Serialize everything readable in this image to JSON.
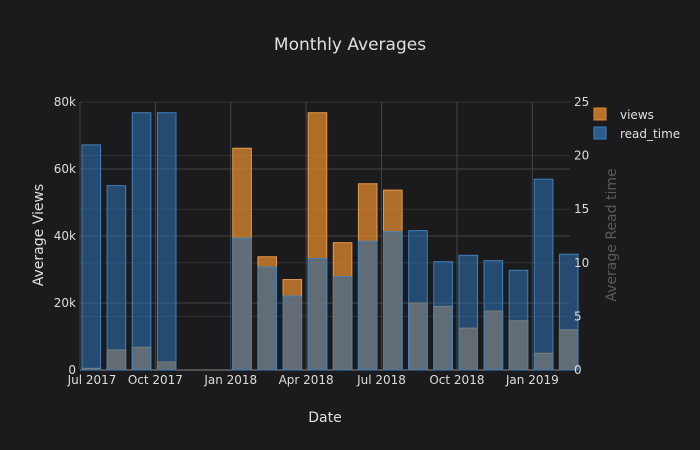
{
  "chart_data": {
    "type": "bar",
    "title": "Monthly Averages",
    "xlabel": "Date",
    "ylabel_left": "Average Views",
    "ylabel_right": "Average Read time",
    "x_ticks": [
      "Jul 2017",
      "Oct 2017",
      "Jan 2018",
      "Apr 2018",
      "Jul 2018",
      "Oct 2018",
      "Jan 2019"
    ],
    "y_left_ticks": [
      "0",
      "20k",
      "40k",
      "60k",
      "80k"
    ],
    "y_right_ticks": [
      "0",
      "5",
      "10",
      "15",
      "20",
      "25"
    ],
    "ylim_left": [
      0,
      80000
    ],
    "ylim_right": [
      0,
      25
    ],
    "grid": true,
    "legend_position": "top-right",
    "months": [
      "2017-07",
      "2017-08",
      "2017-09",
      "2017-10",
      "2017-11",
      "2017-12",
      "2018-01",
      "2018-02",
      "2018-03",
      "2018-04",
      "2018-05",
      "2018-06",
      "2018-07",
      "2018-08",
      "2018-09",
      "2018-10",
      "2018-11",
      "2018-12",
      "2019-01",
      "2019-02"
    ],
    "series": [
      {
        "name": "views",
        "axis": "left",
        "color": "#e08a2e",
        "values": [
          500,
          6000,
          6800,
          2400,
          null,
          null,
          66200,
          33800,
          27000,
          76800,
          38000,
          55600,
          53700,
          20000,
          19000,
          12500,
          17600,
          14700,
          5000,
          12000
        ]
      },
      {
        "name": "read_time",
        "axis": "right",
        "color": "#2e6ca8",
        "values": [
          21.0,
          17.2,
          24.0,
          24.0,
          null,
          null,
          12.3,
          9.6,
          6.9,
          10.4,
          8.7,
          12.0,
          12.9,
          13.0,
          10.1,
          10.7,
          10.2,
          9.3,
          17.8,
          10.8
        ]
      }
    ]
  }
}
